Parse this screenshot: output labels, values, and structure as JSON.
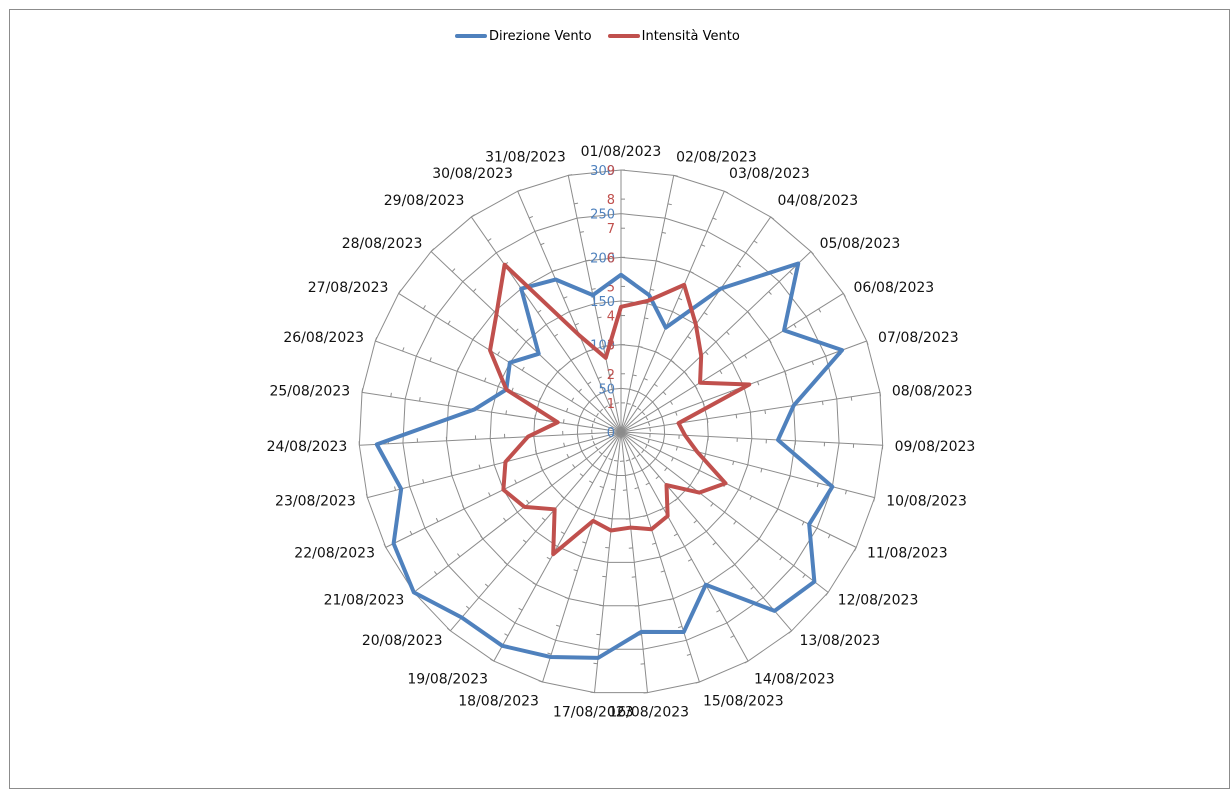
{
  "colors": {
    "direction": "#4f81bd",
    "intensity": "#c0504d",
    "grid": "#8c8c8c",
    "frame": "#8c8c8c"
  },
  "legend": {
    "direction": "Direzione Vento",
    "intensity": "Intensità Vento"
  },
  "chart_data": {
    "type": "radar",
    "legend_position": "top",
    "categories": [
      "01/08/2023",
      "02/08/2023",
      "03/08/2023",
      "04/08/2023",
      "05/08/2023",
      "06/08/2023",
      "07/08/2023",
      "08/08/2023",
      "09/08/2023",
      "10/08/2023",
      "11/08/2023",
      "12/08/2023",
      "13/08/2023",
      "14/08/2023",
      "15/08/2023",
      "16/08/2023",
      "17/08/2023",
      "18/08/2023",
      "19/08/2023",
      "20/08/2023",
      "21/08/2023",
      "22/08/2023",
      "23/08/2023",
      "24/08/2023",
      "25/08/2023",
      "26/08/2023",
      "27/08/2023",
      "28/08/2023",
      "29/08/2023",
      "30/08/2023",
      "31/08/2023"
    ],
    "series": [
      {
        "name": "Direzione Vento",
        "axis": "primary",
        "range": [
          0,
          300
        ],
        "ticks": [
          0,
          50,
          100,
          150,
          200,
          250,
          300
        ],
        "values": [
          180,
          160,
          130,
          200,
          280,
          220,
          270,
          200,
          180,
          250,
          240,
          280,
          270,
          200,
          240,
          230,
          260,
          270,
          280,
          280,
          300,
          290,
          260,
          280,
          170,
          140,
          150,
          130,
          200,
          190,
          160
        ]
      },
      {
        "name": "Intensità Vento",
        "axis": "secondary",
        "range": [
          0,
          9
        ],
        "ticks": [
          0,
          1,
          2,
          3,
          4,
          5,
          6,
          7,
          8,
          9
        ],
        "values": [
          4.3,
          4.6,
          5.5,
          4.5,
          3.8,
          3.2,
          4.7,
          2.0,
          2.2,
          2.7,
          4.0,
          3.4,
          2.4,
          3.3,
          3.5,
          3.3,
          3.4,
          3.2,
          4.8,
          3.5,
          4.2,
          4.5,
          4.1,
          3.2,
          2.2,
          4.2,
          5.3,
          5.9,
          7.0,
          3.6,
          2.6
        ]
      }
    ]
  }
}
